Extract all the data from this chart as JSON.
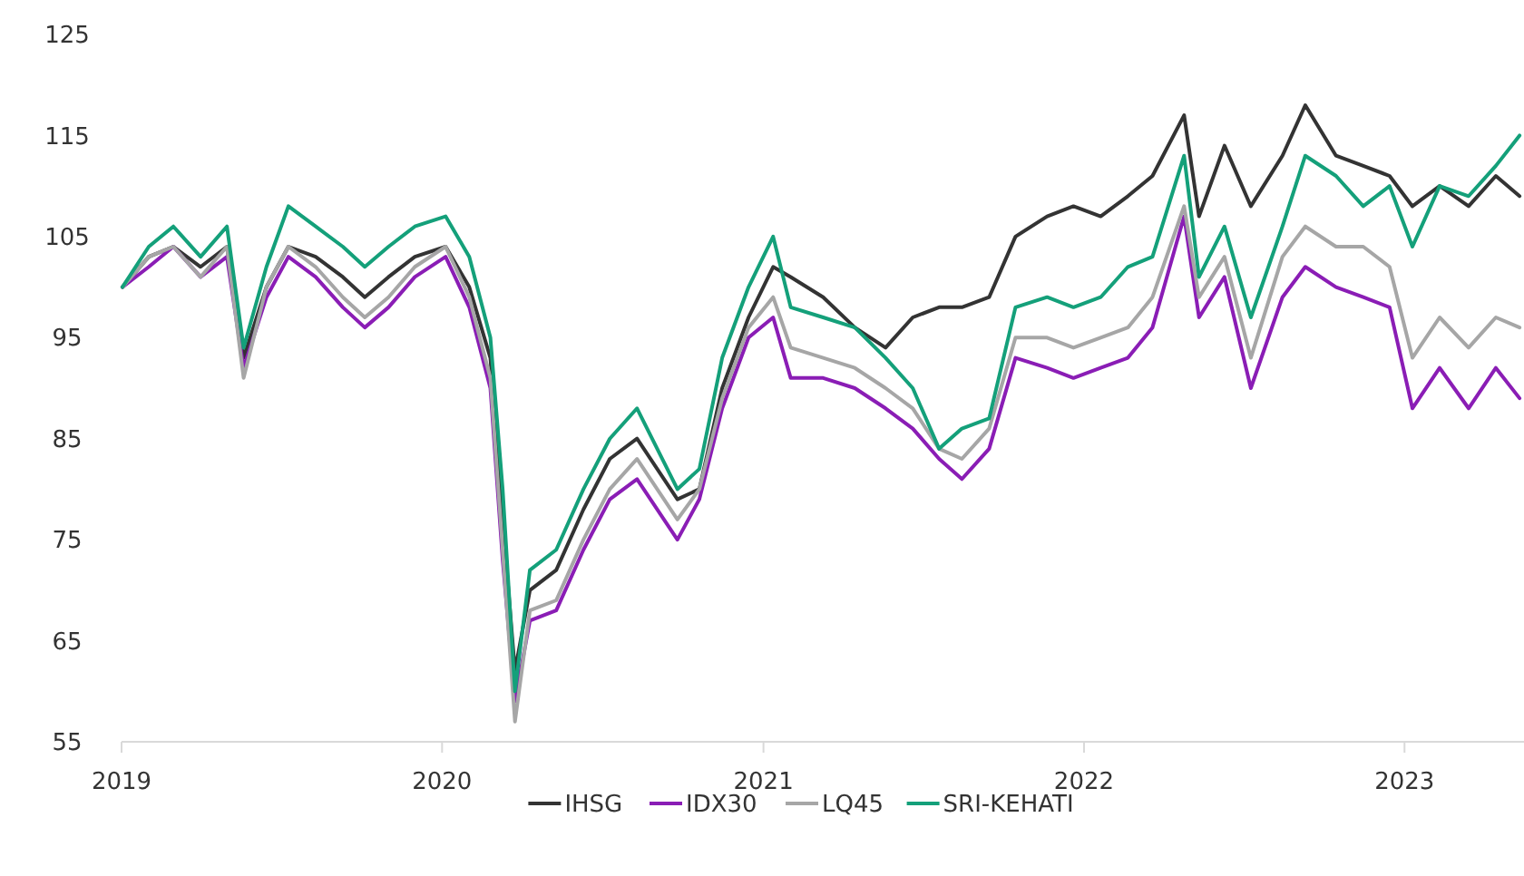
{
  "chart_data": {
    "type": "line",
    "x": [
      "2019-01-02",
      "2019-02-01",
      "2019-03-01",
      "2019-04-01",
      "2019-05-01",
      "2019-05-20",
      "2019-06-15",
      "2019-07-10",
      "2019-08-10",
      "2019-09-10",
      "2019-10-05",
      "2019-11-01",
      "2019-12-01",
      "2020-01-05",
      "2020-02-01",
      "2020-02-25",
      "2020-03-10",
      "2020-03-24",
      "2020-04-10",
      "2020-05-10",
      "2020-06-10",
      "2020-07-10",
      "2020-08-10",
      "2020-09-25",
      "2020-10-20",
      "2020-11-15",
      "2020-12-15",
      "2021-01-12",
      "2021-02-01",
      "2021-03-10",
      "2021-04-15",
      "2021-05-20",
      "2021-06-20",
      "2021-07-20",
      "2021-08-15",
      "2021-09-15",
      "2021-10-15",
      "2021-11-20",
      "2021-12-20",
      "2022-01-20",
      "2022-02-20",
      "2022-03-20",
      "2022-04-25",
      "2022-05-12",
      "2022-06-10",
      "2022-07-10",
      "2022-08-15",
      "2022-09-10",
      "2022-10-15",
      "2022-11-15",
      "2022-12-15",
      "2023-01-10",
      "2023-02-10",
      "2023-03-15",
      "2023-04-15",
      "2023-05-12"
    ],
    "series": [
      {
        "name": "IHSG",
        "color": "#333333",
        "values": [
          100,
          103,
          104,
          102,
          104,
          93,
          100,
          104,
          103,
          101,
          99,
          101,
          103,
          104,
          100,
          93,
          77,
          62,
          70,
          72,
          78,
          83,
          85,
          79,
          80,
          90,
          97,
          102,
          101,
          99,
          96,
          94,
          97,
          98,
          98,
          99,
          105,
          107,
          108,
          107,
          109,
          111,
          117,
          107,
          114,
          108,
          113,
          118,
          113,
          112,
          111,
          108,
          110,
          108,
          111,
          109
        ]
      },
      {
        "name": "IDX30",
        "color": "#8a1db5",
        "values": [
          100,
          102,
          104,
          101,
          103,
          92,
          99,
          103,
          101,
          98,
          96,
          98,
          101,
          103,
          98,
          90,
          73,
          59,
          67,
          68,
          74,
          79,
          81,
          75,
          79,
          88,
          95,
          97,
          91,
          91,
          90,
          88,
          86,
          83,
          81,
          84,
          93,
          92,
          91,
          92,
          93,
          96,
          107,
          97,
          101,
          90,
          99,
          102,
          100,
          99,
          98,
          88,
          92,
          88,
          92,
          89
        ]
      },
      {
        "name": "LQ45",
        "color": "#a6a6a6",
        "values": [
          100,
          103,
          104,
          101,
          104,
          91,
          100,
          104,
          102,
          99,
          97,
          99,
          102,
          104,
          99,
          91,
          74,
          57,
          68,
          69,
          75,
          80,
          83,
          77,
          80,
          89,
          96,
          99,
          94,
          93,
          92,
          90,
          88,
          84,
          83,
          86,
          95,
          95,
          94,
          95,
          96,
          99,
          108,
          99,
          103,
          93,
          103,
          106,
          104,
          104,
          102,
          93,
          97,
          94,
          97,
          96
        ]
      },
      {
        "name": "SRI-KEHATI",
        "color": "#14a07a",
        "values": [
          100,
          104,
          106,
          103,
          106,
          94,
          102,
          108,
          106,
          104,
          102,
          104,
          106,
          107,
          103,
          95,
          80,
          60,
          72,
          74,
          80,
          85,
          88,
          80,
          82,
          93,
          100,
          105,
          98,
          97,
          96,
          93,
          90,
          84,
          86,
          87,
          98,
          99,
          98,
          99,
          102,
          103,
          113,
          101,
          106,
          97,
          106,
          113,
          111,
          108,
          110,
          104,
          110,
          109,
          112,
          115
        ]
      }
    ],
    "xlim": [
      "2019-01-01",
      "2023-05-15"
    ],
    "xticks": [
      {
        "value": "2019-01-01",
        "label": "2019"
      },
      {
        "value": "2020-01-01",
        "label": "2020"
      },
      {
        "value": "2021-01-01",
        "label": "2021"
      },
      {
        "value": "2022-01-01",
        "label": "2022"
      },
      {
        "value": "2023-01-01",
        "label": "2023"
      }
    ],
    "ylim": [
      55,
      125
    ],
    "yticks": [
      55,
      65,
      75,
      85,
      95,
      105,
      115,
      125
    ],
    "grid": false,
    "legend": "bottom",
    "marker": "none",
    "line_style": "solid"
  }
}
